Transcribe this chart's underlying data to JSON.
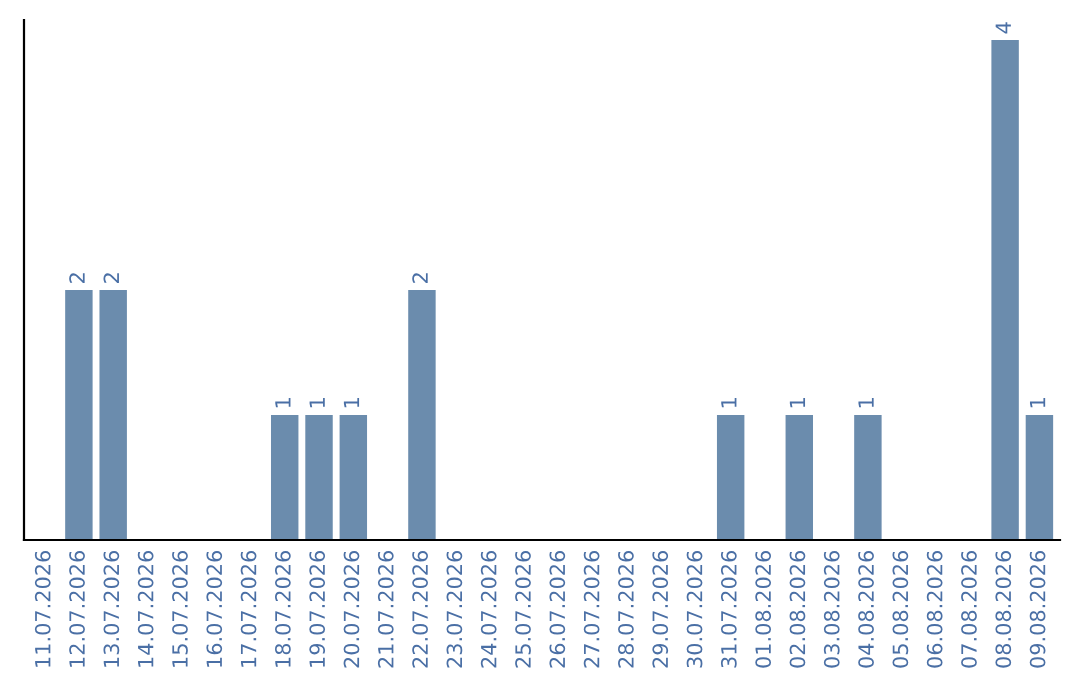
{
  "chart_data": {
    "type": "bar",
    "categories": [
      "11.07.2026",
      "12.07.2026",
      "13.07.2026",
      "14.07.2026",
      "15.07.2026",
      "16.07.2026",
      "17.07.2026",
      "18.07.2026",
      "19.07.2026",
      "20.07.2026",
      "21.07.2026",
      "22.07.2026",
      "23.07.2026",
      "24.07.2026",
      "25.07.2026",
      "26.07.2026",
      "27.07.2026",
      "28.07.2026",
      "29.07.2026",
      "30.07.2026",
      "31.07.2026",
      "01.08.2026",
      "02.08.2026",
      "03.08.2026",
      "04.08.2026",
      "05.08.2026",
      "06.08.2026",
      "07.08.2026",
      "08.08.2026",
      "09.08.2026"
    ],
    "values": [
      0,
      2,
      2,
      0,
      0,
      0,
      0,
      1,
      1,
      1,
      0,
      2,
      0,
      0,
      0,
      0,
      0,
      0,
      0,
      0,
      1,
      0,
      1,
      0,
      1,
      0,
      0,
      0,
      4,
      1
    ],
    "value_labels": [
      null,
      "2",
      "2",
      null,
      null,
      null,
      null,
      "1",
      "1",
      "1",
      null,
      "2",
      null,
      null,
      null,
      null,
      null,
      null,
      null,
      null,
      "1",
      null,
      "1",
      null,
      "1",
      null,
      null,
      null,
      "4",
      "1"
    ],
    "color": "#6b8cad",
    "ylim": [
      0,
      4.16
    ],
    "tick_labels": "x",
    "grid": false,
    "legend": false
  }
}
